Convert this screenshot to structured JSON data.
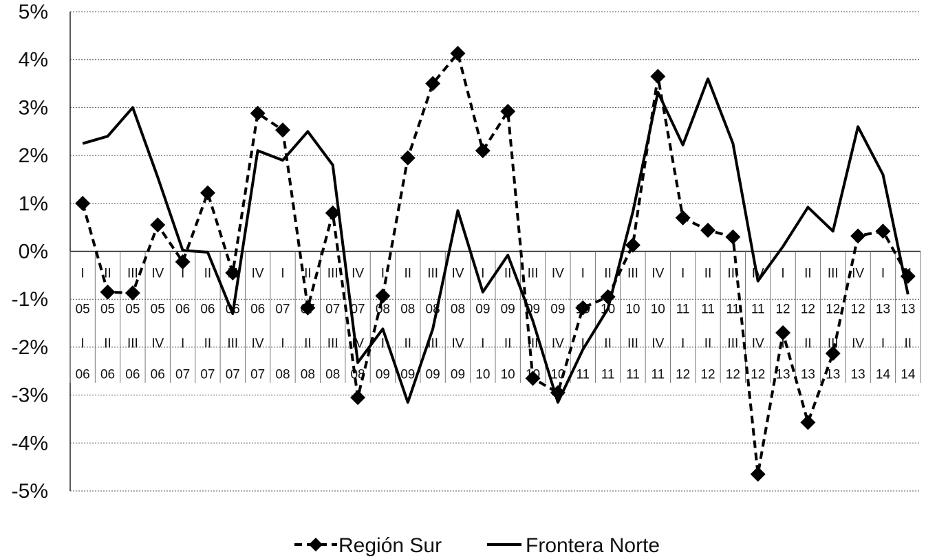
{
  "chart_data": {
    "type": "line",
    "ylim": [
      -5,
      5
    ],
    "yticks": [
      "5%",
      "4%",
      "3%",
      "2%",
      "1%",
      "0%",
      "-1%",
      "-2%",
      "-3%",
      "-4%",
      "-5%"
    ],
    "grid": true,
    "legend_position": "bottom",
    "categories": [
      "I 05 I 06",
      "II 05 II 06",
      "III 05 III 06",
      "IV 05 IV 06",
      "I 06 I 07",
      "II 06 II 07",
      "III 06 III 07",
      "IV 06 IV 07",
      "I 07 I 08",
      "II 07 II 08",
      "III 07 III 08",
      "IV 07 IV 08",
      "I 08 I 09",
      "II 08 II 09",
      "III 08 III 09",
      "IV 08 IV 09",
      "I 09 I 10",
      "II 09 II 10",
      "III 09 III 10",
      "IV 09 IV 10",
      "I 10 I 11",
      "II 10 II 11",
      "III 10 III 11",
      "IV 10 IV 11",
      "I 11 I 12",
      "II 11 II 12",
      "III 11 III 12",
      "IV 11 IV 12",
      "I 12 I 13",
      "II 12 II 13",
      "III 12 III 13",
      "IV 12 IV 13",
      "I 13 I 14",
      "II 13 II 14"
    ],
    "row1": [
      "I",
      "II",
      "III",
      "IV",
      "I",
      "II",
      "III",
      "IV",
      "I",
      "II",
      "III",
      "IV",
      "I",
      "II",
      "III",
      "IV",
      "I",
      "II",
      "III",
      "IV",
      "I",
      "II",
      "III",
      "IV",
      "I",
      "II",
      "III",
      "IV",
      "I",
      "II",
      "III",
      "IV",
      "I",
      "II"
    ],
    "row2": [
      "05",
      "05",
      "05",
      "05",
      "06",
      "06",
      "06",
      "06",
      "07",
      "07",
      "07",
      "07",
      "08",
      "08",
      "08",
      "08",
      "09",
      "09",
      "09",
      "09",
      "10",
      "10",
      "10",
      "10",
      "11",
      "11",
      "11",
      "11",
      "12",
      "12",
      "12",
      "12",
      "13",
      "13"
    ],
    "row3": [
      "I",
      "II",
      "III",
      "IV",
      "I",
      "II",
      "III",
      "IV",
      "I",
      "II",
      "III",
      "IV",
      "I",
      "II",
      "III",
      "IV",
      "I",
      "II",
      "III",
      "IV",
      "I",
      "II",
      "III",
      "IV",
      "I",
      "II",
      "III",
      "IV",
      "I",
      "II",
      "III",
      "IV",
      "I",
      "II"
    ],
    "row4": [
      "06",
      "06",
      "06",
      "06",
      "07",
      "07",
      "07",
      "07",
      "08",
      "08",
      "08",
      "08",
      "09",
      "09",
      "09",
      "09",
      "10",
      "10",
      "10",
      "10",
      "11",
      "11",
      "11",
      "11",
      "12",
      "12",
      "12",
      "12",
      "13",
      "13",
      "13",
      "13",
      "14",
      "14"
    ],
    "series": [
      {
        "name": "Región Sur",
        "style": "dashed-diamond",
        "color": "#000000",
        "values": [
          1.0,
          -0.85,
          -0.87,
          0.55,
          -0.22,
          1.22,
          -0.45,
          2.88,
          2.53,
          -1.18,
          0.8,
          -3.05,
          -0.93,
          1.95,
          3.5,
          4.13,
          2.1,
          2.92,
          -2.65,
          -2.95,
          -1.18,
          -0.95,
          0.13,
          3.65,
          0.7,
          0.44,
          0.3,
          -4.65,
          -1.7,
          -3.57,
          -2.13,
          0.32,
          0.42,
          -0.52
        ]
      },
      {
        "name": "Frontera Norte",
        "style": "solid",
        "color": "#000000",
        "values": [
          2.25,
          2.4,
          3.0,
          1.55,
          0.02,
          -0.02,
          -1.3,
          2.1,
          1.9,
          2.5,
          1.8,
          -2.32,
          -1.62,
          -3.15,
          -1.62,
          0.85,
          -0.85,
          -0.08,
          -1.45,
          -3.15,
          -2.05,
          -1.2,
          0.82,
          3.32,
          2.22,
          3.6,
          2.25,
          -0.62,
          0.1,
          0.92,
          0.42,
          2.6,
          1.6,
          -0.9
        ]
      }
    ]
  }
}
